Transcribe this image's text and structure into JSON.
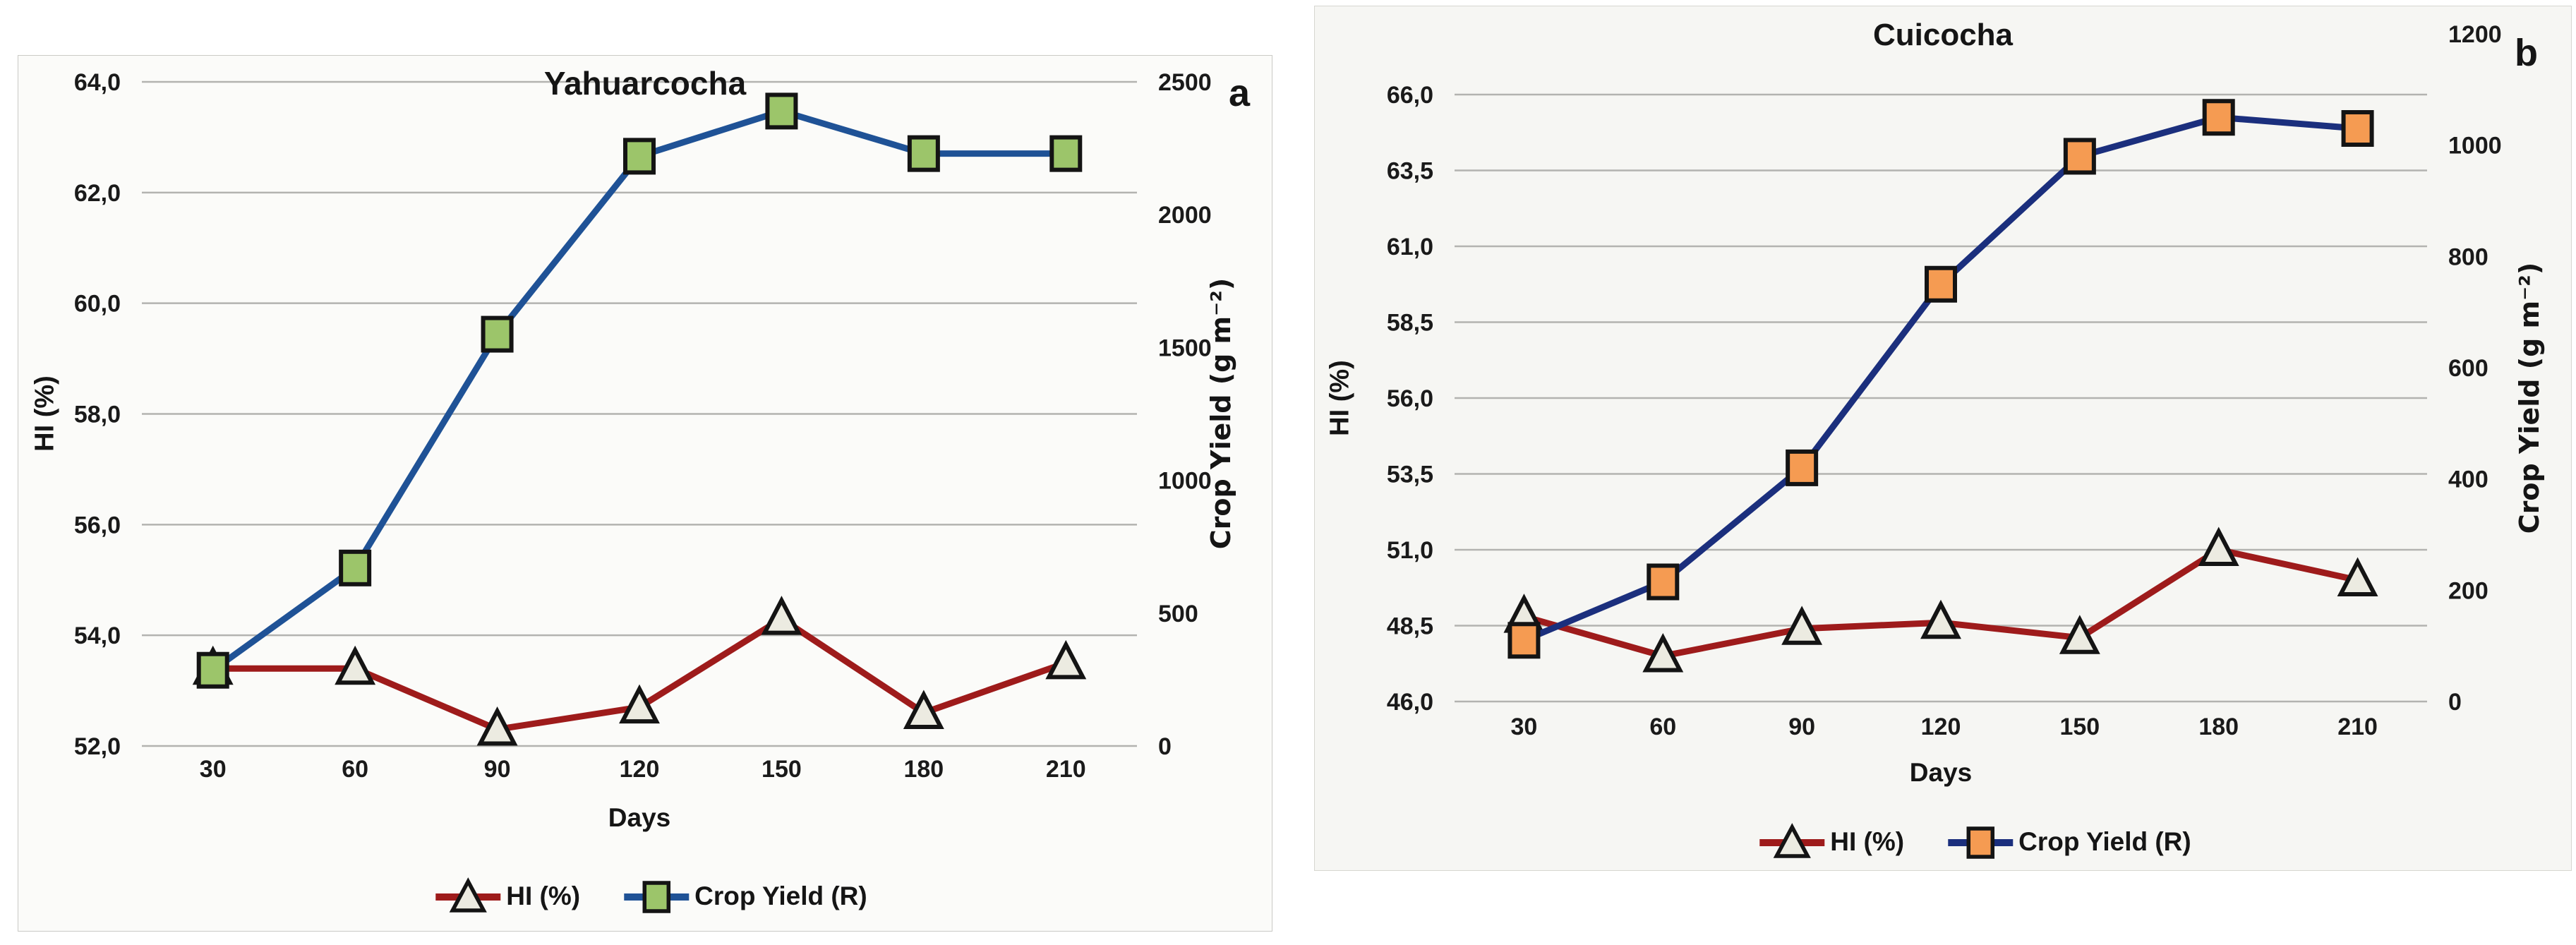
{
  "figure": {
    "background": "#ffffff"
  },
  "chart_data": [
    {
      "id": "a",
      "type": "line",
      "panel_label": "a",
      "title": "Yahuarcocha",
      "xlabel": "Days",
      "categories": [
        30,
        60,
        90,
        120,
        150,
        180,
        210
      ],
      "x_tick_labels": [
        "30",
        "60",
        "90",
        "120",
        "150",
        "180",
        "210"
      ],
      "grid": true,
      "legend_position": "bottom",
      "gridline_color": "#b3b3b0",
      "left_axis": {
        "label": "HI (%)",
        "min": 52.0,
        "max": 64.0,
        "ticks": [
          {
            "v": 64,
            "label": "64,0"
          },
          {
            "v": 62,
            "label": "62,0"
          },
          {
            "v": 60,
            "label": "60,0"
          },
          {
            "v": 58,
            "label": "58,0"
          },
          {
            "v": 56,
            "label": "56,0"
          },
          {
            "v": 54,
            "label": "54,0"
          },
          {
            "v": 52,
            "label": "52,0"
          }
        ]
      },
      "right_axis": {
        "label": "Crop Yield (g m⁻²)",
        "min": 0,
        "max": 2500,
        "maps_to_left": [
          52,
          64
        ],
        "ticks": [
          {
            "v": 2500,
            "label": "2500"
          },
          {
            "v": 2000,
            "label": "2000"
          },
          {
            "v": 1500,
            "label": "1500"
          },
          {
            "v": 1000,
            "label": "1000"
          },
          {
            "v": 500,
            "label": "500"
          },
          {
            "v": 0,
            "label": "0"
          }
        ]
      },
      "series": [
        {
          "name": "HI (%)",
          "axis": "left",
          "marker": "triangle",
          "line_color": "#9e1b1b",
          "marker_fill": "#ecebe1",
          "marker_stroke": "#141414",
          "values": [
            53.4,
            53.4,
            52.3,
            52.7,
            54.3,
            52.6,
            53.5
          ]
        },
        {
          "name": "Crop Yield (R)",
          "axis": "right",
          "marker": "square",
          "line_color": "#1f5296",
          "marker_fill": "#9cc56a",
          "marker_stroke": "#141414",
          "values": [
            285,
            670,
            1550,
            2220,
            2390,
            2230,
            2230
          ]
        }
      ]
    },
    {
      "id": "b",
      "type": "line",
      "panel_label": "b",
      "title": "Cuicocha",
      "xlabel": "Days",
      "categories": [
        30,
        60,
        90,
        120,
        150,
        180,
        210
      ],
      "x_tick_labels": [
        "30",
        "60",
        "90",
        "120",
        "150",
        "180",
        "210"
      ],
      "grid": true,
      "legend_position": "bottom",
      "gridline_color": "#b3b3b0",
      "left_axis": {
        "label": "HI (%)",
        "min": 46.0,
        "max": 66.0,
        "ticks": [
          {
            "v": 66,
            "label": "66,0"
          },
          {
            "v": 63.5,
            "label": "63,5"
          },
          {
            "v": 61,
            "label": "61,0"
          },
          {
            "v": 58.5,
            "label": "58,5"
          },
          {
            "v": 56,
            "label": "56,0"
          },
          {
            "v": 53.5,
            "label": "53,5"
          },
          {
            "v": 51,
            "label": "51,0"
          },
          {
            "v": 48.5,
            "label": "48,5"
          },
          {
            "v": 46,
            "label": "46,0"
          }
        ]
      },
      "right_axis": {
        "label": "Crop Yield (g m⁻²)",
        "min": 0,
        "max": 1200,
        "maps_to_left": [
          46,
          68
        ],
        "ticks": [
          {
            "v": 1200,
            "label": "1200"
          },
          {
            "v": 1000,
            "label": "1000"
          },
          {
            "v": 800,
            "label": "800"
          },
          {
            "v": 600,
            "label": "600"
          },
          {
            "v": 400,
            "label": "400"
          },
          {
            "v": 200,
            "label": "200"
          },
          {
            "v": 0,
            "label": "0"
          }
        ]
      },
      "series": [
        {
          "name": "HI (%)",
          "axis": "left",
          "marker": "triangle",
          "line_color": "#9e1b1b",
          "marker_fill": "#ecebe1",
          "marker_stroke": "#141414",
          "values": [
            48.8,
            47.5,
            48.4,
            48.6,
            48.1,
            51.0,
            50.0
          ]
        },
        {
          "name": "Crop Yield (R)",
          "axis": "right",
          "marker": "square",
          "line_color": "#1b2f7d",
          "marker_fill": "#f59b52",
          "marker_stroke": "#141414",
          "values": [
            110,
            215,
            420,
            750,
            980,
            1050,
            1030
          ]
        }
      ]
    }
  ]
}
